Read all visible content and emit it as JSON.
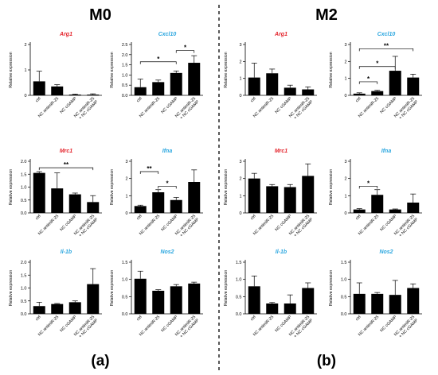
{
  "figure": {
    "group_left": "M0",
    "group_right": "M2",
    "label_left": "(a)",
    "label_right": "(b)",
    "ylabel": "Relative expression",
    "colors": {
      "bar": "#000000",
      "gene_red": "#e4232b",
      "gene_blue": "#2aa6df",
      "text": "#000000"
    }
  },
  "chart_data": [
    {
      "type": "bar",
      "group": "M0",
      "title": "Arg1",
      "title_color": "#e4232b",
      "ylabel": "Relative expression",
      "categories": [
        "ctrl",
        "NC antimiR-25",
        "NC cGAMP",
        "NC antimiR-25 + NC cGAMP"
      ],
      "values": [
        0.55,
        0.35,
        0.03,
        0.03
      ],
      "errors": [
        0.4,
        0.07,
        0.02,
        0.03
      ],
      "ylim": [
        0,
        2
      ],
      "yticks": [
        0,
        1,
        2
      ],
      "significance": []
    },
    {
      "type": "bar",
      "group": "M0",
      "title": "Cxcl10",
      "title_color": "#2aa6df",
      "ylabel": "Relative expression",
      "categories": [
        "ctrl",
        "NC antimiR-25",
        "NC cGAMP",
        "NC antimiR-25 + NC cGAMP"
      ],
      "values": [
        0.4,
        0.65,
        1.1,
        1.6
      ],
      "errors": [
        0.4,
        0.1,
        0.1,
        0.35
      ],
      "ylim": [
        0,
        2.5
      ],
      "yticks": [
        0,
        0.5,
        1,
        1.5,
        2,
        2.5
      ],
      "significance": [
        {
          "from": 0,
          "to": 2,
          "label": "*",
          "y": 1.65
        },
        {
          "from": 2,
          "to": 3,
          "label": "*",
          "y": 2.2
        }
      ]
    },
    {
      "type": "bar",
      "group": "M2",
      "title": "Arg1",
      "title_color": "#e4232b",
      "ylabel": "Relative expression",
      "categories": [
        "ctrl",
        "NC antimiR-25",
        "NC cGAMP",
        "NC antimiR-25 + NC cGAMP"
      ],
      "values": [
        1.05,
        1.3,
        0.45,
        0.35
      ],
      "errors": [
        0.85,
        0.25,
        0.15,
        0.15
      ],
      "ylim": [
        0,
        3
      ],
      "yticks": [
        0,
        1,
        2,
        3
      ],
      "significance": []
    },
    {
      "type": "bar",
      "group": "M2",
      "title": "Cxcl10",
      "title_color": "#2aa6df",
      "ylabel": "Relative expression",
      "categories": [
        "ctrl",
        "NC antimiR-25",
        "NC cGAMP",
        "NC antimiR-25 + NC cGAMP"
      ],
      "values": [
        0.1,
        0.25,
        1.45,
        1.05
      ],
      "errors": [
        0.05,
        0.05,
        0.85,
        0.2
      ],
      "ylim": [
        0,
        3
      ],
      "yticks": [
        0,
        1,
        2,
        3
      ],
      "significance": [
        {
          "from": 0,
          "to": 1,
          "label": "*",
          "y": 0.8
        },
        {
          "from": 0,
          "to": 2,
          "label": "*",
          "y": 1.7
        },
        {
          "from": 0,
          "to": 3,
          "label": "**",
          "y": 2.75
        }
      ]
    },
    {
      "type": "bar",
      "group": "M0",
      "title": "Mrc1",
      "title_color": "#e4232b",
      "ylabel": "Relative expression",
      "categories": [
        "ctrl",
        "NC antimiR-25",
        "NC cGAMP",
        "NC antimiR-25 + NC cGAMP"
      ],
      "values": [
        1.55,
        0.95,
        0.72,
        0.42
      ],
      "errors": [
        0.05,
        0.6,
        0.05,
        0.25
      ],
      "ylim": [
        0,
        2
      ],
      "yticks": [
        0.0,
        0.5,
        1.0,
        1.5,
        2.0
      ],
      "significance": [
        {
          "from": 0,
          "to": 3,
          "label": "**",
          "y": 1.75
        }
      ]
    },
    {
      "type": "bar",
      "group": "M0",
      "title": "Ifna",
      "title_color": "#2aa6df",
      "ylabel": "Relative expression",
      "categories": [
        "ctrl",
        "NC antimiR-25",
        "NC cGAMP",
        "NC antimiR-25 + NC cGAMP"
      ],
      "values": [
        0.4,
        1.2,
        0.75,
        1.8
      ],
      "errors": [
        0.05,
        0.15,
        0.15,
        0.7
      ],
      "ylim": [
        0,
        3
      ],
      "yticks": [
        0,
        1,
        2,
        3
      ],
      "significance": [
        {
          "from": 0,
          "to": 1,
          "label": "**",
          "y": 2.4
        },
        {
          "from": 1,
          "to": 2,
          "label": "*",
          "y": 1.55
        }
      ]
    },
    {
      "type": "bar",
      "group": "M2",
      "title": "Mrc1",
      "title_color": "#e4232b",
      "ylabel": "Relative expression",
      "categories": [
        "ctrl",
        "NC antimiR-25",
        "NC cGAMP",
        "NC antimiR-25 + NC cGAMP"
      ],
      "values": [
        2.0,
        1.55,
        1.5,
        2.15
      ],
      "errors": [
        0.3,
        0.1,
        0.15,
        0.7
      ],
      "ylim": [
        0,
        3
      ],
      "yticks": [
        0,
        1,
        2,
        3
      ],
      "significance": []
    },
    {
      "type": "bar",
      "group": "M2",
      "title": "Ifna",
      "title_color": "#2aa6df",
      "ylabel": "Relative expression",
      "categories": [
        "ctrl",
        "NC antimiR-25",
        "NC cGAMP",
        "NC antimiR-25 + NC cGAMP"
      ],
      "values": [
        0.2,
        1.05,
        0.2,
        0.6
      ],
      "errors": [
        0.05,
        0.3,
        0.03,
        0.5
      ],
      "ylim": [
        0,
        3
      ],
      "yticks": [
        0,
        1,
        2,
        3
      ],
      "significance": [
        {
          "from": 0,
          "to": 1,
          "label": "*",
          "y": 1.55
        }
      ]
    },
    {
      "type": "bar",
      "group": "M0",
      "title": "Il-1b",
      "title_color": "#2aa6df",
      "ylabel": "Relative expression",
      "categories": [
        "ctrl",
        "NC antimiR-25",
        "NC cGAMP",
        "NC antimiR-25 + NC cGAMP"
      ],
      "values": [
        0.3,
        0.38,
        0.45,
        1.15
      ],
      "errors": [
        0.15,
        0.02,
        0.05,
        0.6
      ],
      "ylim": [
        0,
        2
      ],
      "yticks": [
        0.0,
        0.5,
        1.0,
        1.5,
        2.0
      ],
      "significance": []
    },
    {
      "type": "bar",
      "group": "M0",
      "title": "Nos2",
      "title_color": "#2aa6df",
      "ylabel": "Relative expression",
      "categories": [
        "ctrl",
        "NC antimiR-25",
        "NC cGAMP",
        "NC antimiR-25 + NC cGAMP"
      ],
      "values": [
        1.02,
        0.67,
        0.8,
        0.88
      ],
      "errors": [
        0.22,
        0.03,
        0.05,
        0.04
      ],
      "ylim": [
        0,
        1.5
      ],
      "yticks": [
        0.0,
        0.5,
        1.0,
        1.5
      ],
      "significance": []
    },
    {
      "type": "bar",
      "group": "M2",
      "title": "Il-1b",
      "title_color": "#2aa6df",
      "ylabel": "Relative expression",
      "categories": [
        "ctrl",
        "NC antimiR-25",
        "NC cGAMP",
        "NC antimiR-25 + NC cGAMP"
      ],
      "values": [
        0.8,
        0.3,
        0.3,
        0.75
      ],
      "errors": [
        0.3,
        0.03,
        0.25,
        0.15
      ],
      "ylim": [
        0,
        1.5
      ],
      "yticks": [
        0.0,
        0.5,
        1.0,
        1.5
      ],
      "significance": []
    },
    {
      "type": "bar",
      "group": "M2",
      "title": "Nos2",
      "title_color": "#2aa6df",
      "ylabel": "Relative expression",
      "categories": [
        "ctrl",
        "NC antimiR-25",
        "NC cGAMP",
        "NC antimiR-25 + NC cGAMP"
      ],
      "values": [
        0.58,
        0.58,
        0.55,
        0.75
      ],
      "errors": [
        0.32,
        0.04,
        0.42,
        0.12
      ],
      "ylim": [
        0,
        1.5
      ],
      "yticks": [
        0.0,
        0.5,
        1.0,
        1.5
      ],
      "significance": []
    }
  ]
}
